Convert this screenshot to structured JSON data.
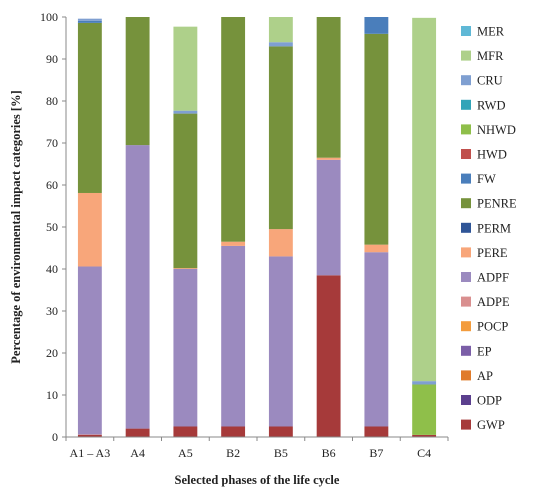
{
  "chart_data": {
    "type": "bar",
    "stacked": true,
    "xlabel": "Selected phases of the life cycle",
    "ylabel": "Percentage of environmental impact categories [%]",
    "ylim": [
      0,
      100
    ],
    "yticks": [
      0,
      10,
      20,
      30,
      40,
      50,
      60,
      70,
      80,
      90,
      100
    ],
    "grid": false,
    "legend_position": "right",
    "categories": [
      "A1 – A3",
      "A4",
      "A5",
      "B2",
      "B5",
      "B6",
      "B7",
      "C4"
    ],
    "series": [
      {
        "name": "GWP",
        "color": "#a63a3a",
        "values": [
          0.5,
          2.0,
          2.5,
          2.5,
          2.5,
          38.5,
          2.5,
          0.5
        ]
      },
      {
        "name": "ODP",
        "color": "#5b3f8e",
        "values": [
          0,
          0,
          0,
          0,
          0,
          0,
          0,
          0
        ]
      },
      {
        "name": "AP",
        "color": "#e07b2a",
        "values": [
          0,
          0,
          0,
          0,
          0,
          0,
          0,
          0
        ]
      },
      {
        "name": "EP",
        "color": "#7b5ea7",
        "values": [
          0,
          0,
          0,
          0,
          0,
          0,
          0,
          0
        ]
      },
      {
        "name": "POCP",
        "color": "#f39c3d",
        "values": [
          0,
          0,
          0,
          0,
          0,
          0,
          0,
          0
        ]
      },
      {
        "name": "ADPE",
        "color": "#d98f8f",
        "values": [
          0.1,
          0,
          0,
          0,
          0,
          0,
          0,
          0
        ]
      },
      {
        "name": "ADPF",
        "color": "#9b8abf",
        "values": [
          40.0,
          67.5,
          37.5,
          43.0,
          40.5,
          27.5,
          41.5,
          0
        ]
      },
      {
        "name": "PERE",
        "color": "#f8a67a",
        "values": [
          17.5,
          0,
          0.2,
          1.0,
          6.5,
          0.5,
          1.8,
          0
        ]
      },
      {
        "name": "PERM",
        "color": "#2f5597",
        "values": [
          0,
          0,
          0,
          0,
          0,
          0,
          0,
          0
        ]
      },
      {
        "name": "PENRE",
        "color": "#76923c",
        "values": [
          40.5,
          30.5,
          36.8,
          53.5,
          43.5,
          33.5,
          50.2,
          0
        ]
      },
      {
        "name": "FW",
        "color": "#4a7ebb",
        "values": [
          0.5,
          0,
          0,
          0,
          0,
          0,
          4.0,
          0
        ]
      },
      {
        "name": "HWD",
        "color": "#c0504d",
        "values": [
          0,
          0,
          0,
          0,
          0,
          0,
          0,
          0
        ]
      },
      {
        "name": "NHWD",
        "color": "#8fbf4a",
        "values": [
          0,
          0,
          0,
          0,
          0,
          0,
          0,
          12.0
        ]
      },
      {
        "name": "RWD",
        "color": "#31a4b8",
        "values": [
          0,
          0,
          0,
          0,
          0,
          0,
          0,
          0
        ]
      },
      {
        "name": "CRU",
        "color": "#7f9fd1",
        "values": [
          0.5,
          0,
          0.7,
          0,
          1.0,
          0,
          0,
          0.8
        ]
      },
      {
        "name": "MFR",
        "color": "#aed08a",
        "values": [
          0,
          0,
          20.0,
          0,
          6.0,
          0,
          0,
          86.5
        ]
      },
      {
        "name": "MER",
        "color": "#5fb8d6",
        "values": [
          0,
          0,
          0,
          0,
          0,
          0,
          0,
          0
        ]
      }
    ],
    "legend_order": [
      "MER",
      "MFR",
      "CRU",
      "RWD",
      "NHWD",
      "HWD",
      "FW",
      "PENRE",
      "PERM",
      "PERE",
      "ADPF",
      "ADPE",
      "POCP",
      "EP",
      "AP",
      "ODP",
      "GWP"
    ]
  }
}
